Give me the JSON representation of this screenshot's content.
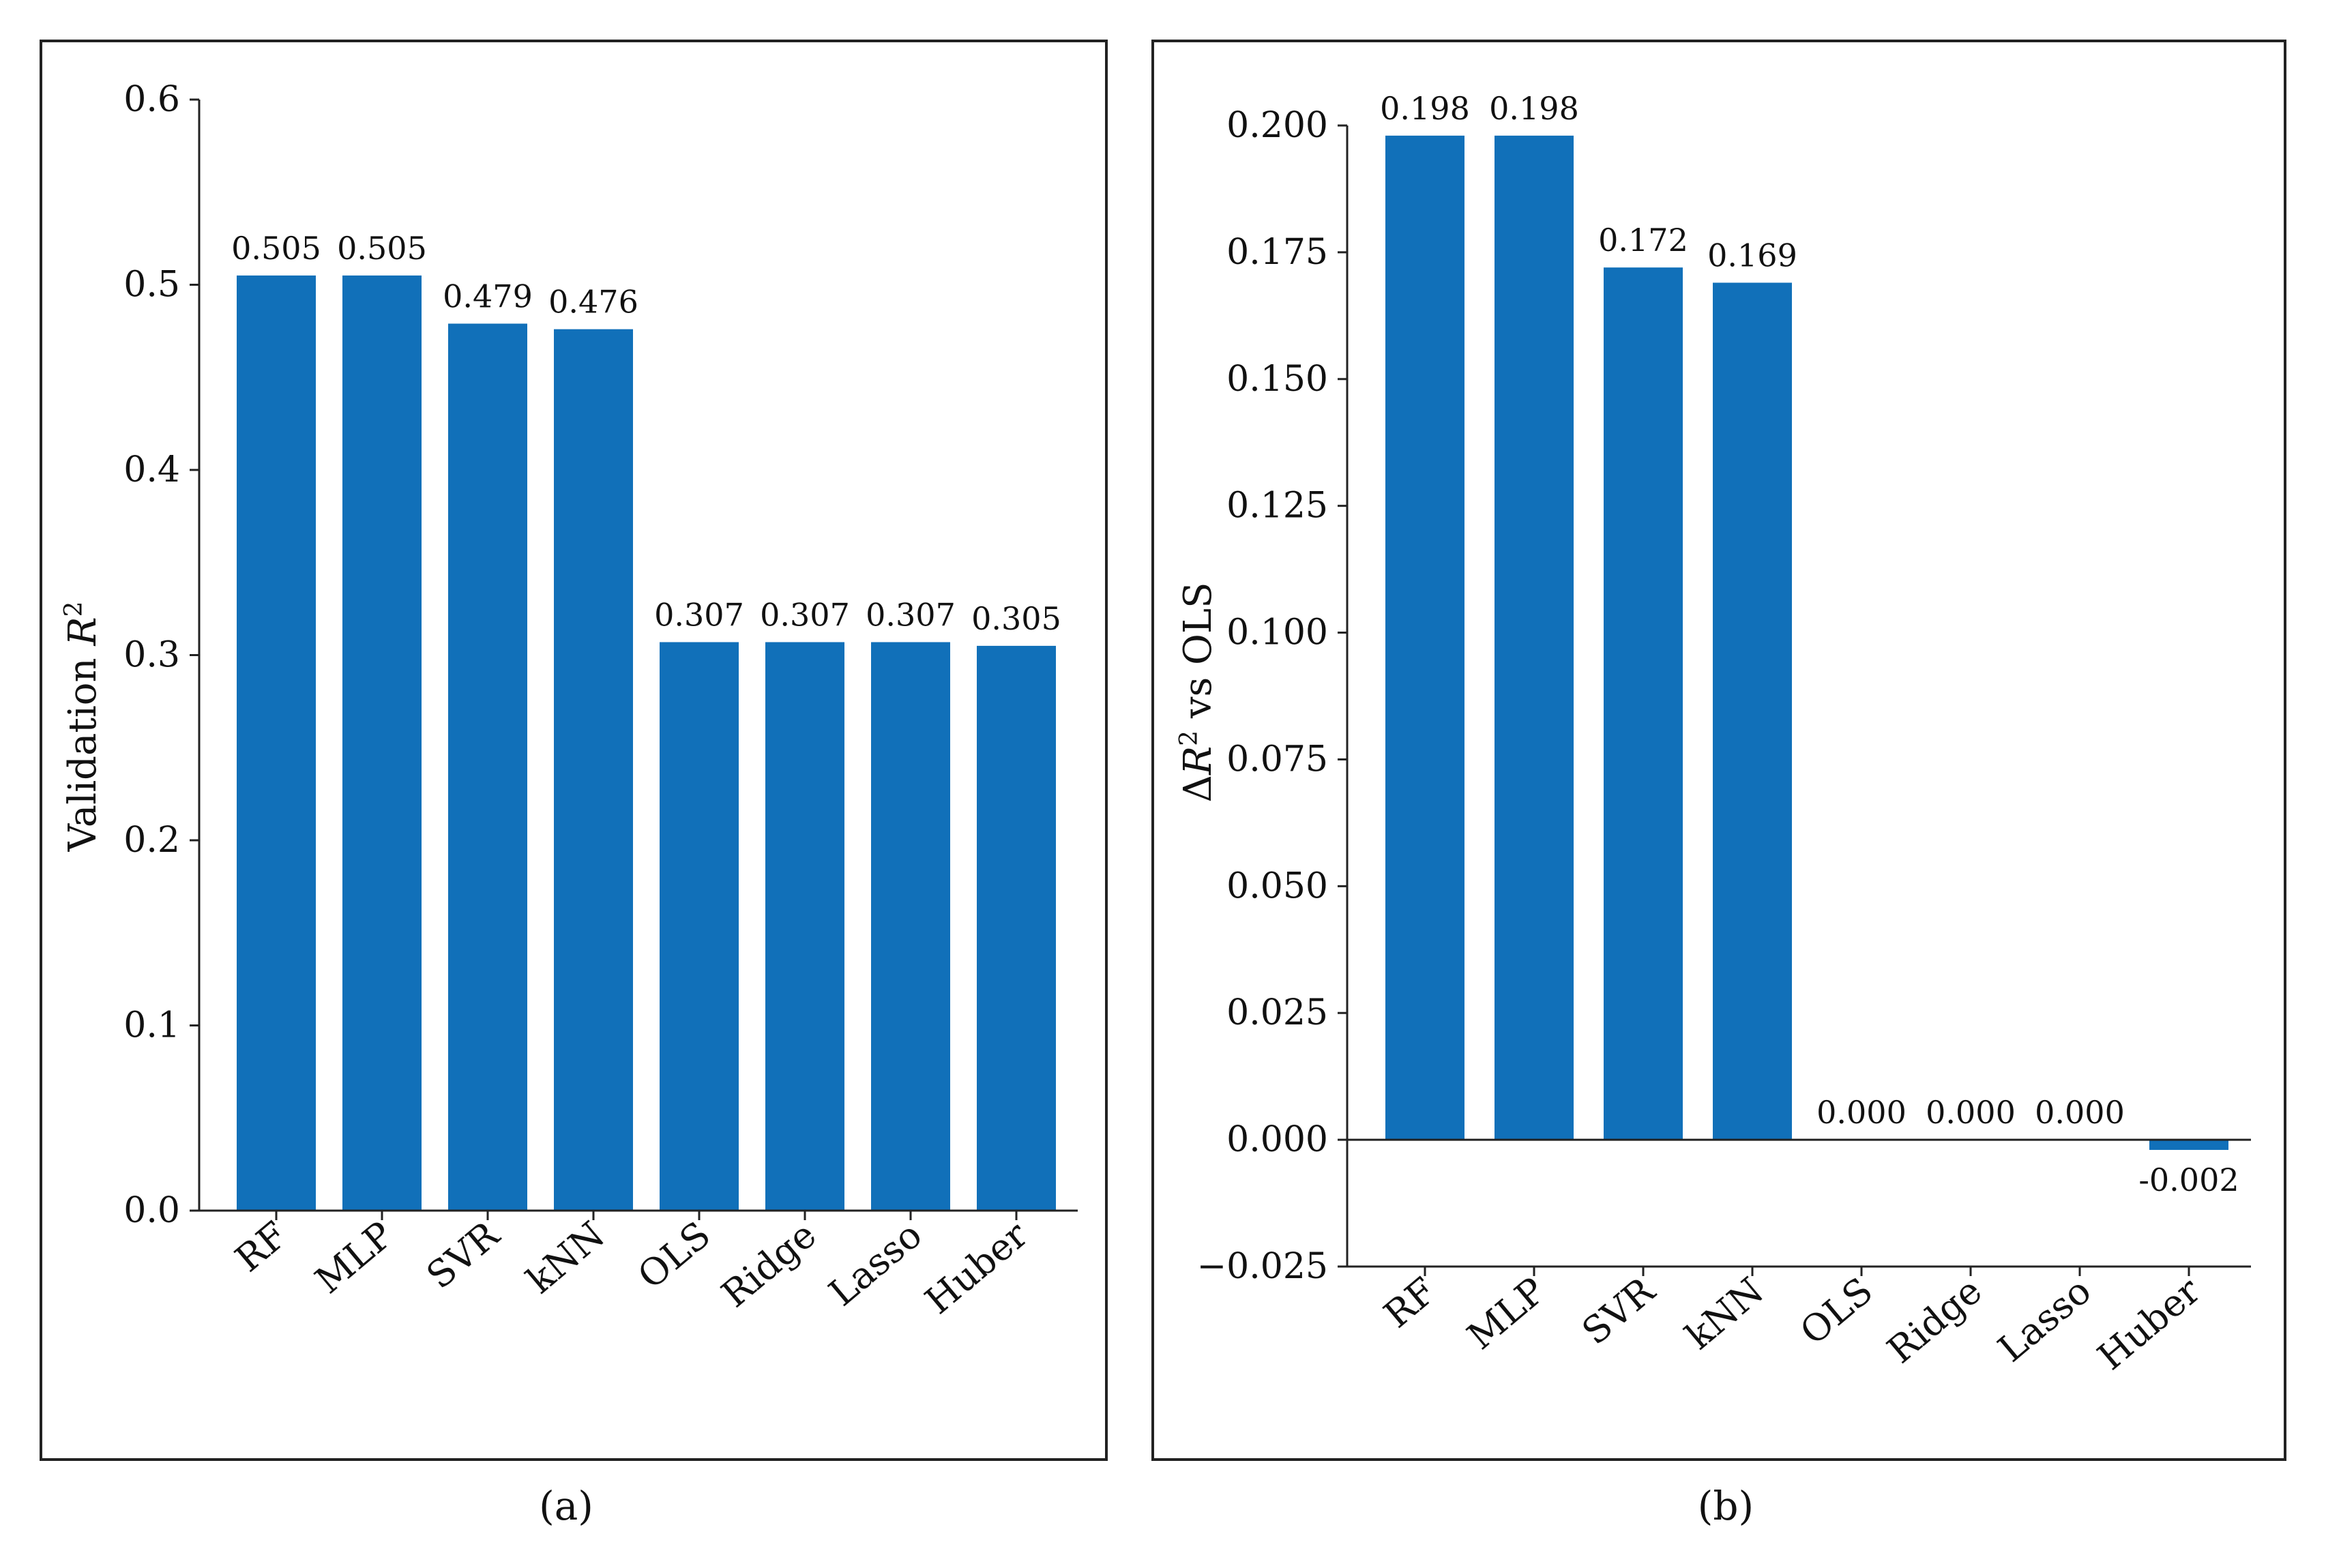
{
  "bar_color": "#1170b9",
  "chart_data": [
    {
      "type": "bar",
      "title": "",
      "subtitle": "(a)",
      "ylabel": "Validation R²",
      "ylabel_main": "Validation ",
      "ylabel_var": "R",
      "ylabel_sup": "2",
      "xlabel": "",
      "categories": [
        "RF",
        "MLP",
        "SVR",
        "kNN",
        "OLS",
        "Ridge",
        "Lasso",
        "Huber"
      ],
      "values": [
        0.505,
        0.505,
        0.479,
        0.476,
        0.307,
        0.307,
        0.307,
        0.305
      ],
      "data_labels": [
        "0.505",
        "0.505",
        "0.479",
        "0.476",
        "0.307",
        "0.307",
        "0.307",
        "0.305"
      ],
      "ylim": [
        0.0,
        0.6
      ],
      "yticks": [
        0.0,
        0.1,
        0.2,
        0.3,
        0.4,
        0.5,
        0.6
      ],
      "ytick_labels": [
        "0.0",
        "0.1",
        "0.2",
        "0.3",
        "0.4",
        "0.5",
        "0.6"
      ],
      "grid": false,
      "legend": "none"
    },
    {
      "type": "bar",
      "title": "",
      "subtitle": "(b)",
      "ylabel": "ΔR² vs OLS",
      "ylabel_pre": "Δ",
      "ylabel_var": "R",
      "ylabel_sup": "2",
      "ylabel_post": " vs OLS",
      "xlabel": "",
      "categories": [
        "RF",
        "MLP",
        "SVR",
        "kNN",
        "OLS",
        "Ridge",
        "Lasso",
        "Huber"
      ],
      "values": [
        0.198,
        0.198,
        0.172,
        0.169,
        0.0,
        0.0,
        0.0,
        -0.002
      ],
      "data_labels": [
        "0.198",
        "0.198",
        "0.172",
        "0.169",
        "0.000",
        "0.000",
        "0.000",
        "-0.002"
      ],
      "ylim": [
        -0.025,
        0.2
      ],
      "yticks": [
        -0.025,
        0.0,
        0.025,
        0.05,
        0.075,
        0.1,
        0.125,
        0.15,
        0.175,
        0.2
      ],
      "ytick_labels": [
        "−0.025",
        "0.000",
        "0.025",
        "0.050",
        "0.075",
        "0.100",
        "0.125",
        "0.150",
        "0.175",
        "0.200"
      ],
      "grid": false,
      "legend": "none",
      "zero_line": true
    }
  ]
}
